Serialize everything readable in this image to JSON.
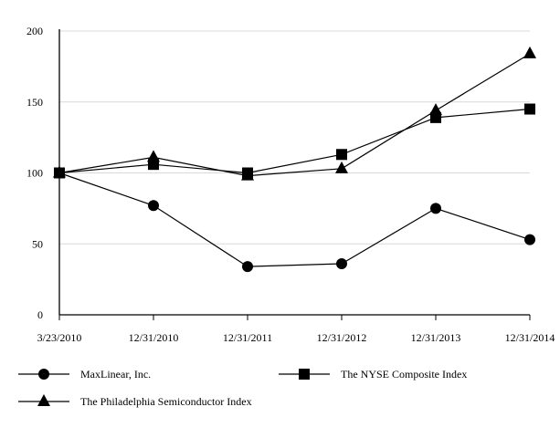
{
  "chart_data": {
    "type": "line",
    "title": "",
    "xlabel": "",
    "ylabel": "",
    "ylim": [
      0,
      200
    ],
    "yticks": [
      0,
      50,
      100,
      150,
      200
    ],
    "grid": true,
    "legend_placement": "bottom",
    "categories": [
      "3/23/2010",
      "12/31/2010",
      "12/31/2011",
      "12/31/2012",
      "12/31/2013",
      "12/31/2014"
    ],
    "series": [
      {
        "name": "MaxLinear, Inc.",
        "marker": "circle",
        "values": [
          100,
          77,
          34,
          36,
          75,
          53
        ]
      },
      {
        "name": "The NYSE Composite Index",
        "marker": "square",
        "values": [
          100,
          106,
          100,
          113,
          139,
          145
        ]
      },
      {
        "name": "The Philadelphia Semiconductor Index",
        "marker": "triangle",
        "values": [
          100,
          111,
          98,
          103,
          144,
          184
        ]
      }
    ],
    "colors": {
      "line": "#000000",
      "grid": "#d9d9d9"
    }
  }
}
